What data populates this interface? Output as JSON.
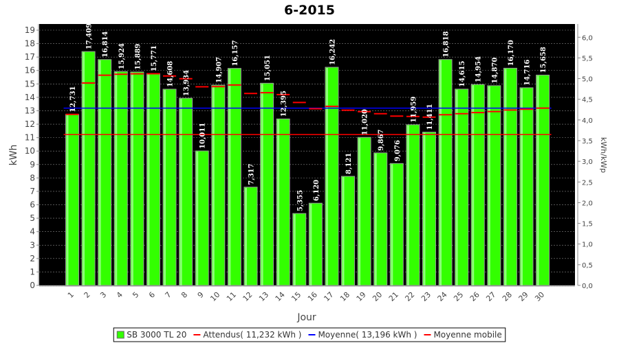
{
  "chart_data": {
    "type": "bar",
    "title": "6-2015",
    "xlabel": "Jour",
    "ylabel": "kWh",
    "y2label": "kWh/kWp",
    "ylim": [
      0,
      19.46
    ],
    "y2lim": [
      0,
      6.32
    ],
    "yticks": [
      "0",
      "1",
      "2",
      "3",
      "4",
      "5",
      "6",
      "7",
      "8",
      "9",
      "10",
      "11",
      "12",
      "13",
      "14",
      "15",
      "16",
      "17",
      "18",
      "19"
    ],
    "y2ticks": [
      "0,0",
      "0,5",
      "1,0",
      "1,5",
      "2,0",
      "2,5",
      "3,0",
      "3,5",
      "4,0",
      "4,5",
      "5,0",
      "5,5",
      "6,0"
    ],
    "categories": [
      "1",
      "2",
      "3",
      "4",
      "5",
      "6",
      "7",
      "8",
      "9",
      "10",
      "11",
      "12",
      "13",
      "14",
      "15",
      "16",
      "17",
      "18",
      "19",
      "20",
      "21",
      "22",
      "23",
      "24",
      "25",
      "26",
      "27",
      "28",
      "29",
      "30"
    ],
    "series": [
      {
        "name": "SB 3000 TL 20",
        "type": "bar",
        "color": "#33ff00",
        "values": [
          12.731,
          17.409,
          16.814,
          15.924,
          15.889,
          15.771,
          14.608,
          13.934,
          10.011,
          14.907,
          16.157,
          7.317,
          15.051,
          12.395,
          5.355,
          6.12,
          16.242,
          8.121,
          11.02,
          9.867,
          9.076,
          11.959,
          11.411,
          16.818,
          14.615,
          14.954,
          14.87,
          16.17,
          14.716,
          15.658
        ],
        "labels": [
          "12,731",
          "17,409",
          "16,814",
          "15,924",
          "15,889",
          "15,771",
          "14,608",
          "13,934",
          "10,011",
          "14,907",
          "16,157",
          "7,317",
          "15,051",
          "12,395",
          "5,355",
          "6,120",
          "16,242",
          "8,121",
          "11,020",
          "9,867",
          "9,076",
          "11,959",
          "11,411",
          "16,818",
          "14,615",
          "14,954",
          "14,870",
          "16,170",
          "14,716",
          "15,658"
        ]
      },
      {
        "name": "Moyenne mobile",
        "type": "step",
        "color": "#ff0000",
        "values": [
          12.731,
          15.07,
          15.651,
          15.72,
          15.753,
          15.756,
          15.592,
          15.385,
          14.788,
          14.8,
          14.923,
          14.289,
          14.348,
          14.208,
          13.618,
          13.15,
          13.332,
          13.042,
          12.936,
          12.782,
          12.606,
          12.576,
          12.526,
          12.704,
          12.781,
          12.864,
          12.939,
          13.054,
          13.111,
          13.196
        ]
      }
    ],
    "lines": [
      {
        "name": "Attendus",
        "value": 11.232,
        "color": "#ff0000"
      },
      {
        "name": "Moyenne",
        "value": 13.196,
        "color": "#0000ff"
      }
    ],
    "legend": [
      "SB 3000 TL 20",
      "Attendus( 11,232 kWh )",
      "Moyenne( 13,196 kWh )",
      "Moyenne mobile"
    ],
    "legend_position": "bottom",
    "grid": true
  }
}
